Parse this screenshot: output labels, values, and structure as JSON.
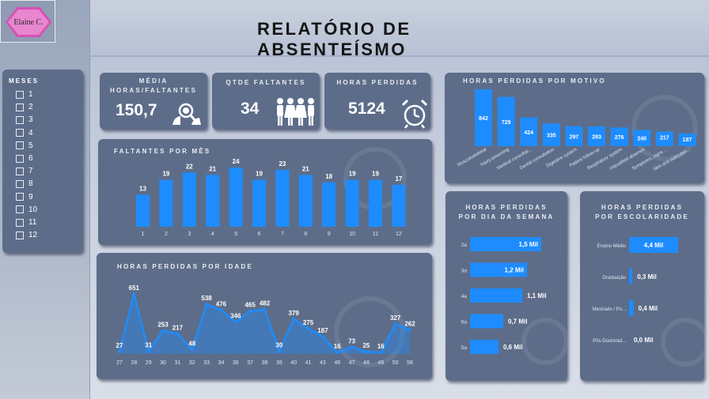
{
  "logo": {
    "text": "Elaine C."
  },
  "title": "RELATÓRIO DE ABSENTEÍSMO",
  "months": {
    "title": "MESES",
    "items": [
      "1",
      "2",
      "3",
      "4",
      "5",
      "6",
      "7",
      "8",
      "9",
      "10",
      "11",
      "12"
    ]
  },
  "kpis": {
    "media": {
      "title_line1": "MÉDIA",
      "title_line2": "HORAS/FALTANTES",
      "value": "150,7",
      "icon": "doctor-search-icon"
    },
    "faltantes": {
      "title": "QTDE FALTANTES",
      "value": "34",
      "icon": "people-group-icon"
    },
    "horas": {
      "title": "HORAS PERDIDAS",
      "value": "5124",
      "icon": "alarm-clock-icon"
    }
  },
  "colors": {
    "bar": "#1e8cff",
    "card": "#5d6d89",
    "text": "#ffffff"
  },
  "panels": {
    "faltantes_mes": "FALTANTES POR MÊS",
    "idade": "HORAS PERDIDAS POR IDADE",
    "motivo": "HORAS PERDIDAS POR MOTIVO",
    "dia_line1": "HORAS PERDIDAS",
    "dia_line2": "POR DIA DA SEMANA",
    "escolaridade_line1": "HORAS PERDIDAS",
    "escolaridade_line2": "POR ESCOLARIDADE"
  },
  "chart_data": [
    {
      "id": "faltantes_por_mes",
      "type": "bar",
      "title": "FALTANTES POR MÊS",
      "categories": [
        "1",
        "2",
        "3",
        "4",
        "5",
        "6",
        "7",
        "8",
        "9",
        "10",
        "11",
        "12"
      ],
      "values": [
        13,
        19,
        22,
        21,
        24,
        19,
        23,
        21,
        18,
        19,
        19,
        17
      ]
    },
    {
      "id": "horas_por_idade",
      "type": "area",
      "title": "HORAS PERDIDAS POR IDADE",
      "x": [
        "27",
        "28",
        "29",
        "30",
        "31",
        "32",
        "33",
        "34",
        "36",
        "37",
        "38",
        "39",
        "40",
        "41",
        "43",
        "46",
        "47",
        "48",
        "49",
        "50",
        "58"
      ],
      "values": [
        27,
        651,
        31,
        253,
        217,
        48,
        538,
        476,
        346,
        465,
        482,
        30,
        379,
        275,
        187,
        16,
        73,
        25,
        16,
        327,
        262
      ]
    },
    {
      "id": "horas_por_motivo",
      "type": "bar",
      "title": "HORAS PERDIDAS POR MOTIVO",
      "categories": [
        "Musculoskeletal",
        "Injury poisoning",
        "Medical consultat...",
        "Dental consultation",
        "Digestive system",
        "Patient follow-up",
        "Respiratory system",
        "Unjustified absence",
        "Symptoms, signs ...",
        "Skin and subcutan..."
      ],
      "values": [
        842,
        729,
        424,
        335,
        297,
        293,
        276,
        240,
        217,
        187
      ]
    },
    {
      "id": "horas_por_dia",
      "type": "bar",
      "orientation": "horizontal",
      "title": "HORAS PERDIDAS POR DIA DA SEMANA",
      "categories": [
        "2a",
        "3a",
        "4a",
        "6a",
        "5a"
      ],
      "values": [
        1.5,
        1.2,
        1.1,
        0.7,
        0.6
      ],
      "labels": [
        "1,5 Mil",
        "1,2 Mil",
        "1,1 Mil",
        "0,7 Mil",
        "0,6 Mil"
      ]
    },
    {
      "id": "horas_por_escolaridade",
      "type": "bar",
      "orientation": "horizontal",
      "title": "HORAS PERDIDAS POR ESCOLARIDADE",
      "categories": [
        "Ensino Médio",
        "Graduação",
        "Mestrado / Po...",
        "Pós Doutorad..."
      ],
      "values": [
        4.4,
        0.3,
        0.4,
        0.0
      ],
      "labels": [
        "4,4 Mil",
        "0,3 Mil",
        "0,4 Mil",
        "0,0 Mil"
      ]
    }
  ]
}
